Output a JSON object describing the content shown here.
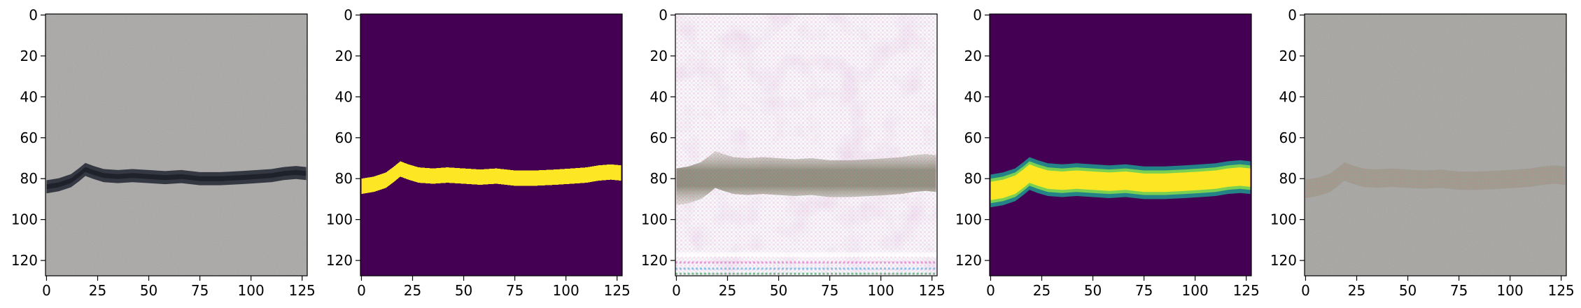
{
  "figure": {
    "panels": [
      {
        "id": "concrete-photo",
        "kind": "photo-crack",
        "xticks": [
          "0",
          "25",
          "50",
          "75",
          "100",
          "125"
        ],
        "yticks": [
          "0",
          "20",
          "40",
          "60",
          "80",
          "100",
          "120"
        ]
      },
      {
        "id": "ground-truth-mask",
        "kind": "binary-mask",
        "xticks": [
          "0",
          "25",
          "50",
          "75",
          "100",
          "125"
        ],
        "yticks": [
          "0",
          "20",
          "40",
          "60",
          "80",
          "100",
          "120"
        ]
      },
      {
        "id": "generated-image",
        "kind": "artifact-image",
        "xticks": [
          "0",
          "25",
          "50",
          "75",
          "100",
          "125"
        ],
        "yticks": [
          "0",
          "20",
          "40",
          "60",
          "80",
          "100",
          "120"
        ]
      },
      {
        "id": "predicted-mask",
        "kind": "soft-mask",
        "xticks": [
          "0",
          "25",
          "50",
          "75",
          "100",
          "125"
        ],
        "yticks": [
          "0",
          "20",
          "40",
          "60",
          "80",
          "100",
          "120"
        ]
      },
      {
        "id": "overlay-image",
        "kind": "faint-overlay",
        "xticks": [
          "0",
          "25",
          "50",
          "75",
          "100",
          "125"
        ],
        "yticks": [
          "0",
          "20",
          "40",
          "60",
          "80",
          "100",
          "120"
        ]
      }
    ],
    "colors": {
      "concrete": "#a9a8a6",
      "crack": "#2a2f3a",
      "mask_background": "#440154",
      "mask_foreground": "#fde725",
      "mask_edge": "#21918c",
      "artifact_background": "#f4ecf2",
      "artifact_band": "#8a8678"
    }
  }
}
